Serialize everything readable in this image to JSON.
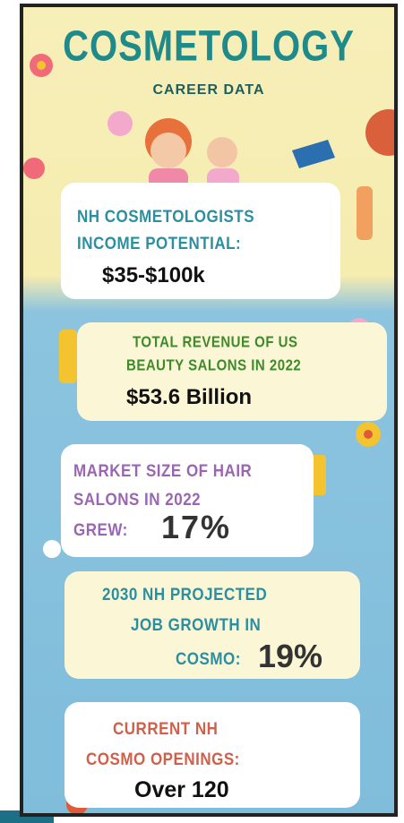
{
  "header": {
    "title": "COSMETOLOGY",
    "subtitle": "CAREER DATA"
  },
  "cards": [
    {
      "lines": [
        "NH COSMETOLOGISTS",
        "INCOME POTENTIAL:"
      ],
      "value": "$35-$100k"
    },
    {
      "lines": [
        "TOTAL REVENUE OF US",
        "BEAUTY SALONS IN 2022"
      ],
      "value": "$53.6 Billion"
    },
    {
      "lines": [
        "MARKET SIZE OF HAIR",
        "SALONS IN 2022",
        "GREW:"
      ],
      "value": "17%"
    },
    {
      "lines": [
        "2030 NH PROJECTED",
        "JOB GROWTH IN",
        "COSMO:"
      ],
      "value": "19%"
    },
    {
      "lines": [
        "CURRENT NH",
        "COSMO OPENINGS:"
      ],
      "value": "Over 120"
    }
  ]
}
